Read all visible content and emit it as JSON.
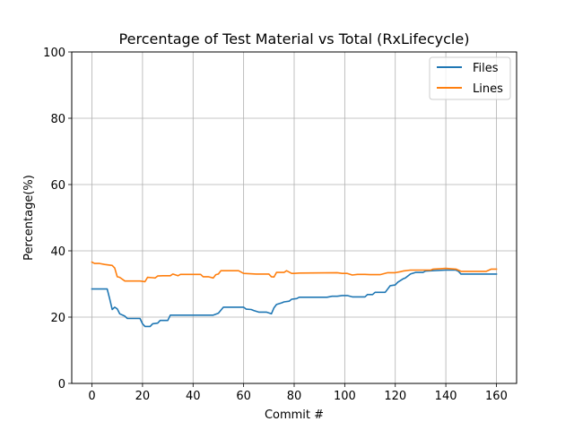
{
  "chart_data": {
    "type": "line",
    "title": "Percentage of Test Material vs Total (RxLifecycle)",
    "xlabel": "Commit #",
    "ylabel": "Percentage(%)",
    "xlim": [
      -8,
      168
    ],
    "ylim": [
      0,
      100
    ],
    "xticks": [
      0,
      20,
      40,
      60,
      80,
      100,
      120,
      140,
      160
    ],
    "yticks": [
      0,
      20,
      40,
      60,
      80,
      100
    ],
    "grid": true,
    "legend_position": "upper right",
    "series": [
      {
        "name": "Files",
        "color": "#1f77b4",
        "points": [
          [
            0,
            28.5
          ],
          [
            6,
            28.5
          ],
          [
            7,
            25.5
          ],
          [
            8,
            22.3
          ],
          [
            9,
            23.0
          ],
          [
            10,
            22.5
          ],
          [
            11,
            21.0
          ],
          [
            13,
            20.3
          ],
          [
            14,
            19.6
          ],
          [
            19,
            19.6
          ],
          [
            20,
            18.0
          ],
          [
            21,
            17.2
          ],
          [
            23,
            17.2
          ],
          [
            24,
            18.0
          ],
          [
            26,
            18.2
          ],
          [
            27,
            19.0
          ],
          [
            30,
            19.0
          ],
          [
            31,
            20.6
          ],
          [
            48,
            20.6
          ],
          [
            50,
            21.2
          ],
          [
            52,
            23.0
          ],
          [
            60,
            23.0
          ],
          [
            61,
            22.4
          ],
          [
            63,
            22.3
          ],
          [
            64,
            22.0
          ],
          [
            66,
            21.5
          ],
          [
            69,
            21.5
          ],
          [
            71,
            21.0
          ],
          [
            72,
            22.8
          ],
          [
            73,
            23.8
          ],
          [
            75,
            24.3
          ],
          [
            76,
            24.6
          ],
          [
            78,
            24.8
          ],
          [
            79,
            25.4
          ],
          [
            81,
            25.6
          ],
          [
            82,
            26.0
          ],
          [
            93,
            26.0
          ],
          [
            95,
            26.3
          ],
          [
            97,
            26.3
          ],
          [
            99,
            26.5
          ],
          [
            101,
            26.5
          ],
          [
            103,
            26.1
          ],
          [
            108,
            26.1
          ],
          [
            109,
            26.8
          ],
          [
            111,
            26.8
          ],
          [
            112,
            27.5
          ],
          [
            116,
            27.5
          ],
          [
            118,
            29.5
          ],
          [
            120,
            29.7
          ],
          [
            121,
            30.5
          ],
          [
            123,
            31.5
          ],
          [
            124,
            31.8
          ],
          [
            126,
            33.0
          ],
          [
            128,
            33.5
          ],
          [
            131,
            33.5
          ],
          [
            132,
            33.9
          ],
          [
            140,
            34.2
          ],
          [
            144,
            34.2
          ],
          [
            145,
            33.8
          ],
          [
            146,
            33.0
          ],
          [
            160,
            33.0
          ]
        ]
      },
      {
        "name": "Lines",
        "color": "#ff7f0e",
        "points": [
          [
            0,
            36.6
          ],
          [
            1,
            36.2
          ],
          [
            3,
            36.2
          ],
          [
            5,
            35.9
          ],
          [
            8,
            35.6
          ],
          [
            9,
            34.8
          ],
          [
            10,
            32.2
          ],
          [
            11,
            32.0
          ],
          [
            13,
            30.9
          ],
          [
            19,
            30.9
          ],
          [
            21,
            30.7
          ],
          [
            22,
            32.0
          ],
          [
            24,
            31.9
          ],
          [
            25,
            31.8
          ],
          [
            26,
            32.4
          ],
          [
            28,
            32.5
          ],
          [
            31,
            32.5
          ],
          [
            32,
            33.0
          ],
          [
            34,
            32.5
          ],
          [
            35,
            32.9
          ],
          [
            43,
            32.9
          ],
          [
            44,
            32.2
          ],
          [
            46,
            32.2
          ],
          [
            48,
            31.8
          ],
          [
            49,
            32.8
          ],
          [
            50,
            33.0
          ],
          [
            51,
            34.0
          ],
          [
            58,
            34.0
          ],
          [
            60,
            33.2
          ],
          [
            65,
            33.0
          ],
          [
            70,
            33.0
          ],
          [
            71,
            32.2
          ],
          [
            72,
            32.1
          ],
          [
            73,
            33.5
          ],
          [
            76,
            33.5
          ],
          [
            77,
            34.0
          ],
          [
            79,
            33.2
          ],
          [
            80,
            33.2
          ],
          [
            82,
            33.3
          ],
          [
            97,
            33.4
          ],
          [
            99,
            33.2
          ],
          [
            101,
            33.2
          ],
          [
            103,
            32.7
          ],
          [
            105,
            32.9
          ],
          [
            108,
            32.9
          ],
          [
            110,
            32.8
          ],
          [
            114,
            32.8
          ],
          [
            117,
            33.4
          ],
          [
            120,
            33.4
          ],
          [
            122,
            33.7
          ],
          [
            123,
            33.9
          ],
          [
            126,
            34.2
          ],
          [
            134,
            34.2
          ],
          [
            135,
            34.5
          ],
          [
            140,
            34.7
          ],
          [
            144,
            34.5
          ],
          [
            146,
            33.8
          ],
          [
            156,
            33.8
          ],
          [
            158,
            34.5
          ],
          [
            160,
            34.5
          ]
        ]
      }
    ]
  }
}
